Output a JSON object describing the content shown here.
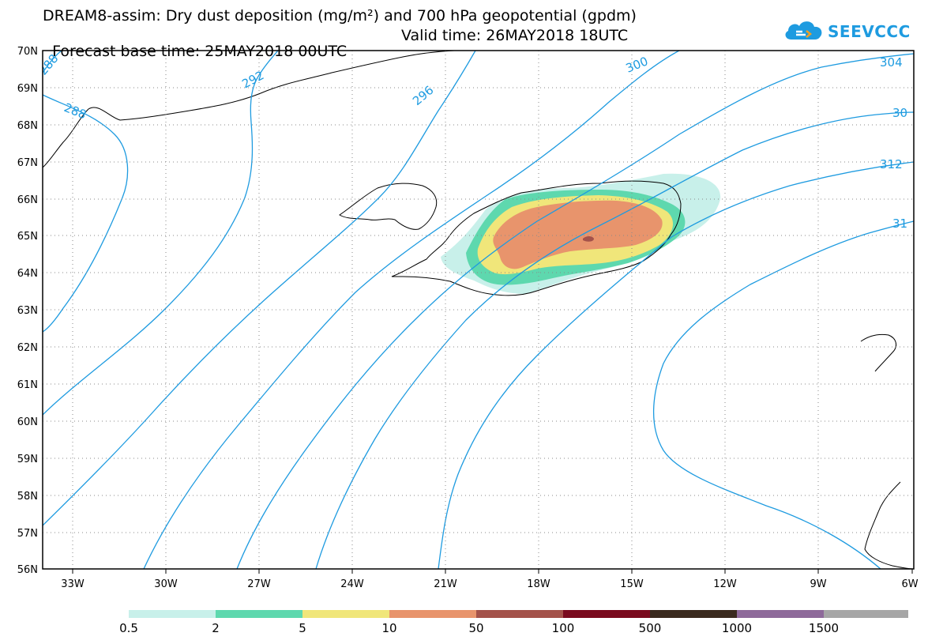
{
  "header": {
    "line1": "DREAM8-assim: Dry dust deposition (mg/m²) and 700 hPa geopotential (gpdm)",
    "line2_left": "Forecast base time: 25MAY2018 00UTC",
    "line2_right": "Valid time: 26MAY2018 18UTC"
  },
  "logo": {
    "text": "SEEVCCC",
    "icon": "cloud-icon",
    "color": "#1e9be0"
  },
  "map": {
    "lat_labels": [
      "70N",
      "69N",
      "68N",
      "67N",
      "66N",
      "65N",
      "64N",
      "63N",
      "62N",
      "61N",
      "60N",
      "59N",
      "58N",
      "57N",
      "56N"
    ],
    "lon_labels": [
      "33W",
      "30W",
      "27W",
      "24W",
      "21W",
      "18W",
      "15W",
      "12W",
      "9W",
      "6W"
    ],
    "contour_color": "#1e9be0",
    "isoline_labels": [
      "288",
      "288",
      "292",
      "296",
      "300",
      "304",
      "30",
      "312",
      "31"
    ]
  },
  "legend": {
    "colors": [
      "#c8f0ea",
      "#5ed8ae",
      "#f0e67a",
      "#e8946c",
      "#a4524a",
      "#7a0a1e",
      "#3a2a1e",
      "#8e6a9a",
      "#a6a6a6"
    ],
    "labels": [
      "0.5",
      "2",
      "5",
      "10",
      "50",
      "100",
      "500",
      "1000",
      "1500"
    ]
  }
}
